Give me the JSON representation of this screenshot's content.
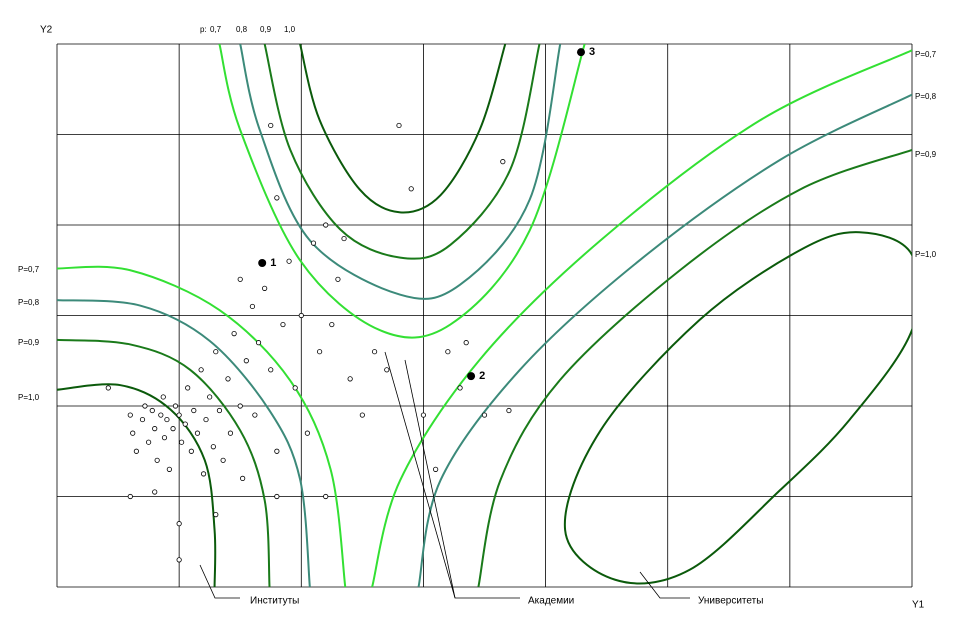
{
  "chart_data": {
    "type": "scatter",
    "xlabel": "Y1",
    "ylabel": "Y2",
    "xlim": [
      0,
      7
    ],
    "ylim": [
      0,
      6
    ],
    "grid_x": [
      0,
      1,
      2,
      3,
      4,
      5,
      6,
      7
    ],
    "grid_y": [
      0,
      1,
      2,
      3,
      4,
      5,
      6
    ],
    "top_legend": {
      "prefix": "p:",
      "levels": [
        "0,7",
        "0,8",
        "0,9",
        "1,0"
      ]
    },
    "left_labels": [
      "P=0,7",
      "P=0,8",
      "P=0,9",
      "P=1,0"
    ],
    "right_labels": [
      "P=0,7",
      "P=0,8",
      "P=0,9",
      "P=1,0"
    ],
    "annotations": [
      "Институты",
      "Академии",
      "Университеты"
    ],
    "points": {
      "x": [
        0.42,
        0.6,
        0.62,
        0.65,
        0.7,
        0.72,
        0.75,
        0.78,
        0.8,
        0.82,
        0.85,
        0.87,
        0.88,
        0.9,
        0.92,
        0.95,
        0.97,
        1.0,
        1.02,
        1.05,
        1.07,
        1.1,
        1.12,
        1.15,
        1.18,
        1.2,
        1.22,
        1.25,
        1.28,
        1.3,
        1.33,
        1.36,
        1.4,
        1.42,
        1.45,
        1.5,
        1.52,
        1.55,
        1.6,
        1.62,
        1.65,
        1.7,
        1.75,
        1.8,
        1.85,
        1.9,
        1.95,
        2.0,
        2.05,
        2.1,
        2.15,
        2.2,
        2.25,
        2.3,
        2.4,
        2.5,
        2.6,
        2.7,
        2.8,
        2.9,
        3.0,
        3.1,
        3.2,
        3.3,
        3.35,
        3.5,
        3.7,
        3.65,
        0.6,
        0.8,
        1.0,
        1.0,
        1.3,
        1.8,
        1.5,
        1.75,
        1.8,
        2.2,
        2.35
      ],
      "y": [
        2.2,
        1.9,
        1.7,
        1.5,
        1.85,
        2.0,
        1.6,
        1.95,
        1.75,
        1.4,
        1.9,
        2.1,
        1.65,
        1.85,
        1.3,
        1.75,
        2.0,
        1.9,
        1.6,
        1.8,
        2.2,
        1.5,
        1.95,
        1.7,
        2.4,
        1.25,
        1.85,
        2.1,
        1.55,
        2.6,
        1.95,
        1.4,
        2.3,
        1.7,
        2.8,
        2.0,
        1.2,
        2.5,
        3.1,
        1.9,
        2.7,
        3.3,
        2.4,
        1.5,
        2.9,
        3.6,
        2.2,
        3.0,
        1.7,
        3.8,
        2.6,
        1.0,
        2.9,
        3.4,
        2.3,
        1.9,
        2.6,
        2.4,
        5.1,
        4.4,
        1.9,
        1.3,
        2.6,
        2.2,
        2.7,
        1.9,
        1.95,
        4.7,
        1.0,
        1.05,
        0.7,
        0.3,
        0.8,
        1.0,
        3.4,
        5.1,
        4.3,
        4.0,
        3.85
      ]
    },
    "labeled_points": [
      {
        "label": "1",
        "x": 1.68,
        "y": 3.58
      },
      {
        "label": "2",
        "x": 3.39,
        "y": 2.33
      },
      {
        "label": "3",
        "x": 4.29,
        "y": 5.91
      }
    ],
    "contours": [
      {
        "color": "#0b5a0b",
        "closed": false,
        "x": [
          0,
          0.52,
          0.93,
          1.21,
          1.29,
          1.29
        ],
        "y": [
          2.18,
          2.23,
          1.96,
          1.4,
          0.63,
          0
        ]
      },
      {
        "color": "#1a7a1a",
        "closed": false,
        "x": [
          0,
          0.6,
          1.09,
          1.5,
          1.7,
          1.74
        ],
        "y": [
          2.73,
          2.68,
          2.4,
          1.73,
          0.96,
          0
        ]
      },
      {
        "color": "#3c8a7a",
        "closed": false,
        "x": [
          0,
          0.68,
          1.25,
          1.74,
          1.99,
          2.07
        ],
        "y": [
          3.17,
          3.11,
          2.72,
          1.95,
          1.19,
          0
        ]
      },
      {
        "color": "#33e033",
        "closed": false,
        "x": [
          0,
          0.6,
          1.33,
          1.91,
          2.24,
          2.36
        ],
        "y": [
          3.52,
          3.5,
          3.06,
          2.28,
          1.3,
          0
        ]
      },
      {
        "color": "#0b5a0b",
        "closed": false,
        "x": [
          1.99,
          2.15,
          2.48,
          2.81,
          3.14,
          3.46,
          3.67
        ],
        "y": [
          6,
          5.16,
          4.39,
          4.14,
          4.33,
          5.05,
          6
        ]
      },
      {
        "color": "#1a7a1a",
        "closed": false,
        "x": [
          1.7,
          1.91,
          2.32,
          2.81,
          3.22,
          3.71,
          3.95
        ],
        "y": [
          6,
          4.83,
          3.95,
          3.64,
          3.78,
          4.61,
          6
        ]
      },
      {
        "color": "#3c8a7a",
        "closed": false,
        "x": [
          1.5,
          1.66,
          2.07,
          2.81,
          3.3,
          3.87,
          4.12
        ],
        "y": [
          6,
          5.05,
          3.83,
          3.23,
          3.34,
          4.28,
          6
        ]
      },
      {
        "color": "#33e033",
        "closed": false,
        "x": [
          1.33,
          1.5,
          1.99,
          2.64,
          3.22,
          3.87,
          4.32
        ],
        "y": [
          6,
          5.05,
          3.61,
          2.84,
          2.9,
          3.94,
          6
        ]
      },
      {
        "color": "#0b5a0b",
        "closed": true,
        "x": [
          7,
          7,
          6.49,
          5.92,
          5.18,
          4.57,
          4.16,
          4.45,
          5.26,
          6.08,
          6.57
        ],
        "y": [
          3.67,
          2.84,
          1.85,
          1.07,
          0.19,
          0.08,
          0.63,
          1.73,
          2.95,
          3.72,
          3.92
        ]
      },
      {
        "color": "#1a7a1a",
        "closed": false,
        "x": [
          3.45,
          3.63,
          4.12,
          5.1,
          6.08,
          7
        ],
        "y": [
          0,
          1.18,
          2.29,
          3.5,
          4.39,
          4.83
        ]
      },
      {
        "color": "#3c8a7a",
        "closed": false,
        "x": [
          2.96,
          3.14,
          3.79,
          4.77,
          5.92,
          7
        ],
        "y": [
          0,
          1.18,
          2.4,
          3.61,
          4.72,
          5.44
        ]
      },
      {
        "color": "#33e033",
        "closed": false,
        "x": [
          2.58,
          2.81,
          3.46,
          4.45,
          5.76,
          7
        ],
        "y": [
          0,
          1.18,
          2.51,
          3.83,
          5.16,
          5.93
        ]
      }
    ]
  }
}
